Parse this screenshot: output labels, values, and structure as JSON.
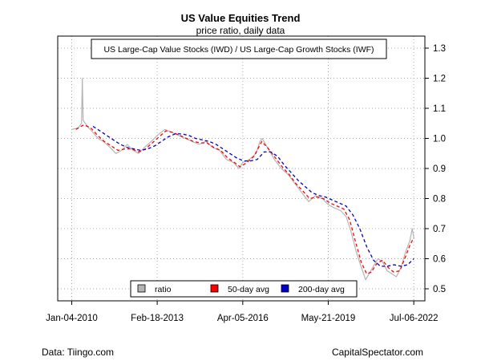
{
  "chart_data": {
    "type": "line",
    "title": "US Value Equities Trend",
    "subtitle": "price ratio, daily data",
    "annotation": "US Large-Cap Value Stocks (IWD) / US Large-Cap Growth Stocks (IWF)",
    "x_range": [
      "2009-07-01",
      "2022-12-01"
    ],
    "y_range": [
      0.46,
      1.34
    ],
    "x_ticks": [
      {
        "date": "2010-01-04",
        "label": "Jan-04-2010"
      },
      {
        "date": "2013-02-18",
        "label": "Feb-18-2013"
      },
      {
        "date": "2016-04-05",
        "label": "Apr-05-2016"
      },
      {
        "date": "2019-05-21",
        "label": "May-21-2019"
      },
      {
        "date": "2022-07-06",
        "label": "Jul-06-2022"
      }
    ],
    "y_ticks": [
      0.5,
      0.6,
      0.7,
      0.8,
      0.9,
      1.0,
      1.1,
      1.2,
      1.3
    ],
    "y_axis_side": "right",
    "grid": true,
    "legend_position": "bottom",
    "series": [
      {
        "name": "ratio",
        "color": "#b4b4b4",
        "points": [
          [
            "2010-01-04",
            1.03
          ],
          [
            "2010-04-01",
            1.035
          ],
          [
            "2010-05-15",
            1.05
          ],
          [
            "2010-05-25",
            1.2
          ],
          [
            "2010-06-05",
            1.06
          ],
          [
            "2010-08-01",
            1.04
          ],
          [
            "2010-10-15",
            1.02
          ],
          [
            "2010-12-20",
            1.0
          ],
          [
            "2011-03-01",
            0.99
          ],
          [
            "2011-06-01",
            0.97
          ],
          [
            "2011-08-15",
            0.95
          ],
          [
            "2011-11-01",
            0.96
          ],
          [
            "2012-01-15",
            0.98
          ],
          [
            "2012-04-01",
            0.96
          ],
          [
            "2012-06-15",
            0.95
          ],
          [
            "2012-09-01",
            0.97
          ],
          [
            "2012-12-01",
            0.99
          ],
          [
            "2013-02-18",
            1.01
          ],
          [
            "2013-06-01",
            1.03
          ],
          [
            "2013-09-01",
            1.02
          ],
          [
            "2013-12-01",
            1.01
          ],
          [
            "2014-03-01",
            1.0
          ],
          [
            "2014-06-01",
            0.99
          ],
          [
            "2014-09-01",
            0.98
          ],
          [
            "2014-12-01",
            0.99
          ],
          [
            "2015-03-01",
            0.97
          ],
          [
            "2015-06-01",
            0.96
          ],
          [
            "2015-09-01",
            0.93
          ],
          [
            "2015-12-01",
            0.92
          ],
          [
            "2016-02-15",
            0.9
          ],
          [
            "2016-04-05",
            0.92
          ],
          [
            "2016-07-01",
            0.93
          ],
          [
            "2016-10-01",
            0.95
          ],
          [
            "2016-11-20",
            0.99
          ],
          [
            "2016-12-20",
            1.0
          ],
          [
            "2017-03-01",
            0.97
          ],
          [
            "2017-06-01",
            0.93
          ],
          [
            "2017-09-01",
            0.9
          ],
          [
            "2017-12-01",
            0.88
          ],
          [
            "2018-03-01",
            0.85
          ],
          [
            "2018-06-01",
            0.82
          ],
          [
            "2018-09-01",
            0.79
          ],
          [
            "2018-12-01",
            0.81
          ],
          [
            "2019-03-01",
            0.8
          ],
          [
            "2019-05-21",
            0.78
          ],
          [
            "2019-08-01",
            0.77
          ],
          [
            "2019-11-01",
            0.76
          ],
          [
            "2020-01-15",
            0.74
          ],
          [
            "2020-03-20",
            0.69
          ],
          [
            "2020-06-01",
            0.62
          ],
          [
            "2020-08-20",
            0.56
          ],
          [
            "2020-10-01",
            0.53
          ],
          [
            "2020-11-15",
            0.55
          ],
          [
            "2021-01-01",
            0.57
          ],
          [
            "2021-03-15",
            0.6
          ],
          [
            "2021-05-15",
            0.59
          ],
          [
            "2021-07-15",
            0.56
          ],
          [
            "2021-09-15",
            0.55
          ],
          [
            "2021-11-15",
            0.54
          ],
          [
            "2022-01-15",
            0.57
          ],
          [
            "2022-03-15",
            0.62
          ],
          [
            "2022-05-15",
            0.66
          ],
          [
            "2022-06-15",
            0.7
          ],
          [
            "2022-07-06",
            0.67
          ]
        ]
      },
      {
        "name": "50-day avg",
        "color": "#ff0000",
        "points": [
          [
            "2010-03-01",
            1.03
          ],
          [
            "2010-06-15",
            1.045
          ],
          [
            "2010-09-15",
            1.035
          ],
          [
            "2010-12-15",
            1.01
          ],
          [
            "2011-03-15",
            0.99
          ],
          [
            "2011-06-15",
            0.975
          ],
          [
            "2011-09-15",
            0.96
          ],
          [
            "2011-12-15",
            0.965
          ],
          [
            "2012-03-15",
            0.965
          ],
          [
            "2012-06-15",
            0.955
          ],
          [
            "2012-09-15",
            0.965
          ],
          [
            "2012-12-15",
            0.985
          ],
          [
            "2013-03-15",
            1.005
          ],
          [
            "2013-06-15",
            1.025
          ],
          [
            "2013-09-15",
            1.02
          ],
          [
            "2013-12-15",
            1.01
          ],
          [
            "2014-03-15",
            1.0
          ],
          [
            "2014-06-15",
            0.99
          ],
          [
            "2014-09-15",
            0.985
          ],
          [
            "2014-12-15",
            0.985
          ],
          [
            "2015-03-15",
            0.97
          ],
          [
            "2015-06-15",
            0.96
          ],
          [
            "2015-09-15",
            0.935
          ],
          [
            "2015-12-15",
            0.92
          ],
          [
            "2016-03-01",
            0.905
          ],
          [
            "2016-06-01",
            0.92
          ],
          [
            "2016-09-01",
            0.94
          ],
          [
            "2016-12-15",
            0.99
          ],
          [
            "2017-03-15",
            0.965
          ],
          [
            "2017-06-15",
            0.935
          ],
          [
            "2017-09-15",
            0.905
          ],
          [
            "2017-12-15",
            0.88
          ],
          [
            "2018-03-15",
            0.85
          ],
          [
            "2018-06-15",
            0.825
          ],
          [
            "2018-09-15",
            0.8
          ],
          [
            "2018-12-15",
            0.805
          ],
          [
            "2019-03-15",
            0.8
          ],
          [
            "2019-06-15",
            0.785
          ],
          [
            "2019-09-15",
            0.775
          ],
          [
            "2019-12-15",
            0.765
          ],
          [
            "2020-03-01",
            0.73
          ],
          [
            "2020-05-15",
            0.66
          ],
          [
            "2020-08-01",
            0.59
          ],
          [
            "2020-10-15",
            0.55
          ],
          [
            "2020-12-15",
            0.555
          ],
          [
            "2021-03-01",
            0.585
          ],
          [
            "2021-05-15",
            0.595
          ],
          [
            "2021-08-01",
            0.57
          ],
          [
            "2021-10-15",
            0.555
          ],
          [
            "2022-01-01",
            0.56
          ],
          [
            "2022-03-15",
            0.605
          ],
          [
            "2022-05-15",
            0.645
          ],
          [
            "2022-07-06",
            0.67
          ]
        ]
      },
      {
        "name": "200-day avg",
        "color": "#0000cc",
        "points": [
          [
            "2010-10-15",
            1.04
          ],
          [
            "2011-01-15",
            1.025
          ],
          [
            "2011-04-15",
            1.01
          ],
          [
            "2011-07-15",
            0.995
          ],
          [
            "2011-10-15",
            0.98
          ],
          [
            "2012-01-15",
            0.97
          ],
          [
            "2012-04-15",
            0.965
          ],
          [
            "2012-07-15",
            0.96
          ],
          [
            "2012-10-15",
            0.965
          ],
          [
            "2013-01-15",
            0.975
          ],
          [
            "2013-04-15",
            0.99
          ],
          [
            "2013-07-15",
            1.005
          ],
          [
            "2013-10-15",
            1.015
          ],
          [
            "2014-01-15",
            1.015
          ],
          [
            "2014-04-15",
            1.01
          ],
          [
            "2014-07-15",
            1.0
          ],
          [
            "2014-10-15",
            0.995
          ],
          [
            "2015-01-15",
            0.99
          ],
          [
            "2015-04-15",
            0.98
          ],
          [
            "2015-07-15",
            0.965
          ],
          [
            "2015-10-15",
            0.95
          ],
          [
            "2016-01-15",
            0.935
          ],
          [
            "2016-04-15",
            0.925
          ],
          [
            "2016-07-15",
            0.925
          ],
          [
            "2016-10-15",
            0.93
          ],
          [
            "2017-01-15",
            0.955
          ],
          [
            "2017-04-15",
            0.955
          ],
          [
            "2017-07-15",
            0.94
          ],
          [
            "2017-10-15",
            0.91
          ],
          [
            "2018-01-15",
            0.885
          ],
          [
            "2018-04-15",
            0.86
          ],
          [
            "2018-07-15",
            0.84
          ],
          [
            "2018-10-15",
            0.82
          ],
          [
            "2019-01-15",
            0.81
          ],
          [
            "2019-04-15",
            0.805
          ],
          [
            "2019-07-15",
            0.795
          ],
          [
            "2019-10-15",
            0.785
          ],
          [
            "2020-01-15",
            0.775
          ],
          [
            "2020-04-15",
            0.745
          ],
          [
            "2020-07-15",
            0.7
          ],
          [
            "2020-10-15",
            0.64
          ],
          [
            "2021-01-15",
            0.595
          ],
          [
            "2021-04-15",
            0.575
          ],
          [
            "2021-07-15",
            0.575
          ],
          [
            "2021-10-15",
            0.58
          ],
          [
            "2022-01-15",
            0.575
          ],
          [
            "2022-04-15",
            0.58
          ],
          [
            "2022-07-06",
            0.6
          ]
        ]
      }
    ]
  },
  "footer": {
    "source": "Data: Tiingo.com",
    "credit": "CapitalSpectator.com"
  }
}
